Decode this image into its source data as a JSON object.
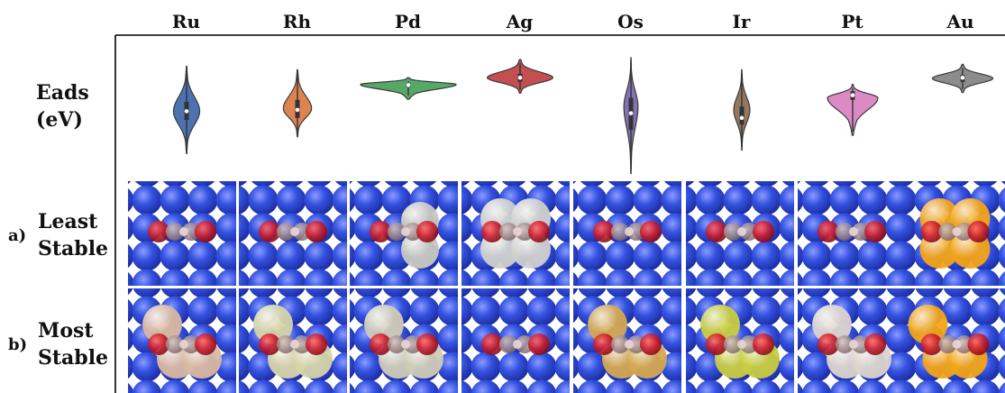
{
  "columns": [
    "Ru",
    "Rh",
    "Pd",
    "Ag",
    "Os",
    "Ir",
    "Pt",
    "Au"
  ],
  "row_labels": {
    "eads_line1": "Eads",
    "eads_line2": "(eV)",
    "a_letter": "a)",
    "a_line1": "Least",
    "a_line2": "Stable",
    "b_letter": "b)",
    "b_line1": "Most",
    "b_line2": "Stable"
  },
  "chart_data": {
    "type": "violin",
    "categories": [
      "Ru",
      "Rh",
      "Pd",
      "Ag",
      "Os",
      "Ir",
      "Pt",
      "Au"
    ],
    "ylabel": "Eads (eV)",
    "colors": [
      "#4c72b0",
      "#dd8452",
      "#55a868",
      "#c44e52",
      "#8172b3",
      "#937860",
      "#da8bc3",
      "#8c8c8c"
    ],
    "violins": [
      {
        "min": -2.05,
        "max": -0.75,
        "median": -1.42,
        "q1": -1.55,
        "q3": -1.28,
        "peak": -1.42,
        "width": 0.26
      },
      {
        "min": -1.8,
        "max": -0.8,
        "median": -1.4,
        "q1": -1.52,
        "q3": -1.25,
        "peak": -1.38,
        "width": 0.28
      },
      {
        "min": -1.24,
        "max": -0.92,
        "median": -1.03,
        "q1": -1.06,
        "q3": -1.0,
        "peak": -1.02,
        "width": 0.95
      },
      {
        "min": -1.15,
        "max": -0.65,
        "median": -0.92,
        "q1": -0.98,
        "q3": -0.86,
        "peak": -0.92,
        "width": 0.65
      },
      {
        "min": -2.35,
        "max": -0.62,
        "median": -1.45,
        "q1": -1.7,
        "q3": -1.22,
        "peak": -1.35,
        "width": 0.14
      },
      {
        "min": -2.0,
        "max": -0.8,
        "median": -1.52,
        "q1": -1.62,
        "q3": -1.35,
        "peak": -1.4,
        "width": 0.16
      },
      {
        "min": -1.78,
        "max": -1.02,
        "median": -1.18,
        "q1": -1.25,
        "q3": -1.12,
        "peak": -1.22,
        "width": 0.5
      },
      {
        "min": -1.14,
        "max": -0.72,
        "median": -0.92,
        "q1": -0.98,
        "q3": -0.88,
        "peak": -0.93,
        "width": 0.6
      }
    ],
    "ylim": [
      -2.45,
      -0.5
    ]
  },
  "structures": {
    "least_stable": [
      {
        "pair": false,
        "col": ""
      },
      {
        "pair": false,
        "col": ""
      },
      {
        "pair": false,
        "col": "#c8c8c0",
        "single": true
      },
      {
        "pair": true,
        "col": "#d0d0cc"
      },
      {
        "pair": false,
        "col": ""
      },
      {
        "pair": false,
        "col": ""
      },
      {
        "pair": false,
        "col": ""
      },
      {
        "pair": true,
        "col": "#f2a418"
      }
    ],
    "most_stable": [
      {
        "pair": true,
        "col": "#d9b8a0"
      },
      {
        "pair": true,
        "col": "#d6d4a8"
      },
      {
        "pair": true,
        "col": "#cfcbb6"
      },
      {
        "pair": false,
        "col": ""
      },
      {
        "pair": true,
        "col": "#d4a850"
      },
      {
        "pair": true,
        "col": "#c8cc40"
      },
      {
        "pair": true,
        "col": "#dcd4cc"
      },
      {
        "pair": true,
        "col": "#f2a418",
        "offset": true
      }
    ]
  }
}
